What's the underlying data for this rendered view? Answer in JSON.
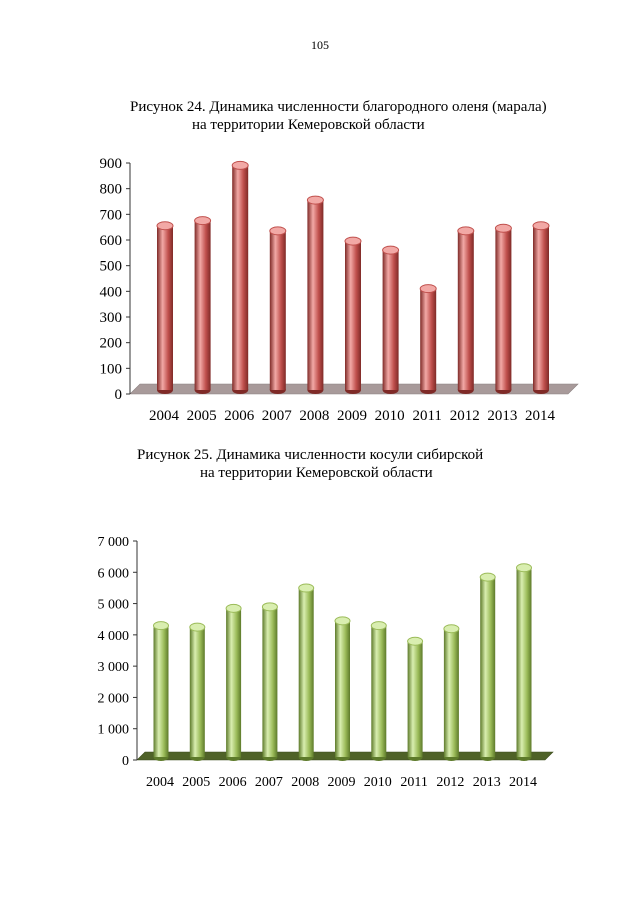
{
  "page": {
    "number": "105"
  },
  "figures": [
    {
      "caption_line1": "Рисунок 24.  Динамика численности благородного оленя (марала)",
      "caption_line2": "на территории  Кемеровской области"
    },
    {
      "caption_line1": "Рисунок 25. Динамика численности косули сибирской",
      "caption_line2": "на территории Кемеровской области"
    }
  ],
  "colors": {
    "red_bar": "#c0504d",
    "red_bar_light": "#f2a9a6",
    "red_bar_dark": "#7f2a27",
    "red_floor": "#a89a9a",
    "green_bar": "#9bbb59",
    "green_bar_light": "#d9eeb0",
    "green_bar_dark": "#5d7a2a",
    "green_floor": "#4f6228"
  },
  "chart_data": [
    {
      "type": "bar",
      "title": "Динамика численности благородного оленя (марала) на территории Кемеровской области",
      "categories": [
        "2004",
        "2005",
        "2006",
        "2007",
        "2008",
        "2009",
        "2010",
        "2011",
        "2012",
        "2013",
        "2014"
      ],
      "values": [
        640,
        660,
        875,
        620,
        740,
        580,
        545,
        395,
        620,
        630,
        640
      ],
      "ylim": [
        0,
        900
      ],
      "yticks": [
        "0",
        "100",
        "200",
        "300",
        "400",
        "500",
        "600",
        "700",
        "800",
        "900"
      ],
      "xlabel": "",
      "ylabel": "",
      "grid": false
    },
    {
      "type": "bar",
      "title": "Динамика численности косули сибирской на территории Кемеровской области",
      "categories": [
        "2004",
        "2005",
        "2006",
        "2007",
        "2008",
        "2009",
        "2010",
        "2011",
        "2012",
        "2013",
        "2014"
      ],
      "values": [
        4200,
        4150,
        4750,
        4800,
        5400,
        4350,
        4200,
        3700,
        4100,
        5750,
        6050
      ],
      "ylim": [
        0,
        7000
      ],
      "yticks": [
        "0",
        "1 000",
        "2 000",
        "3 000",
        "4 000",
        "5 000",
        "6 000",
        "7 000"
      ],
      "xlabel": "",
      "ylabel": "",
      "grid": false
    }
  ]
}
